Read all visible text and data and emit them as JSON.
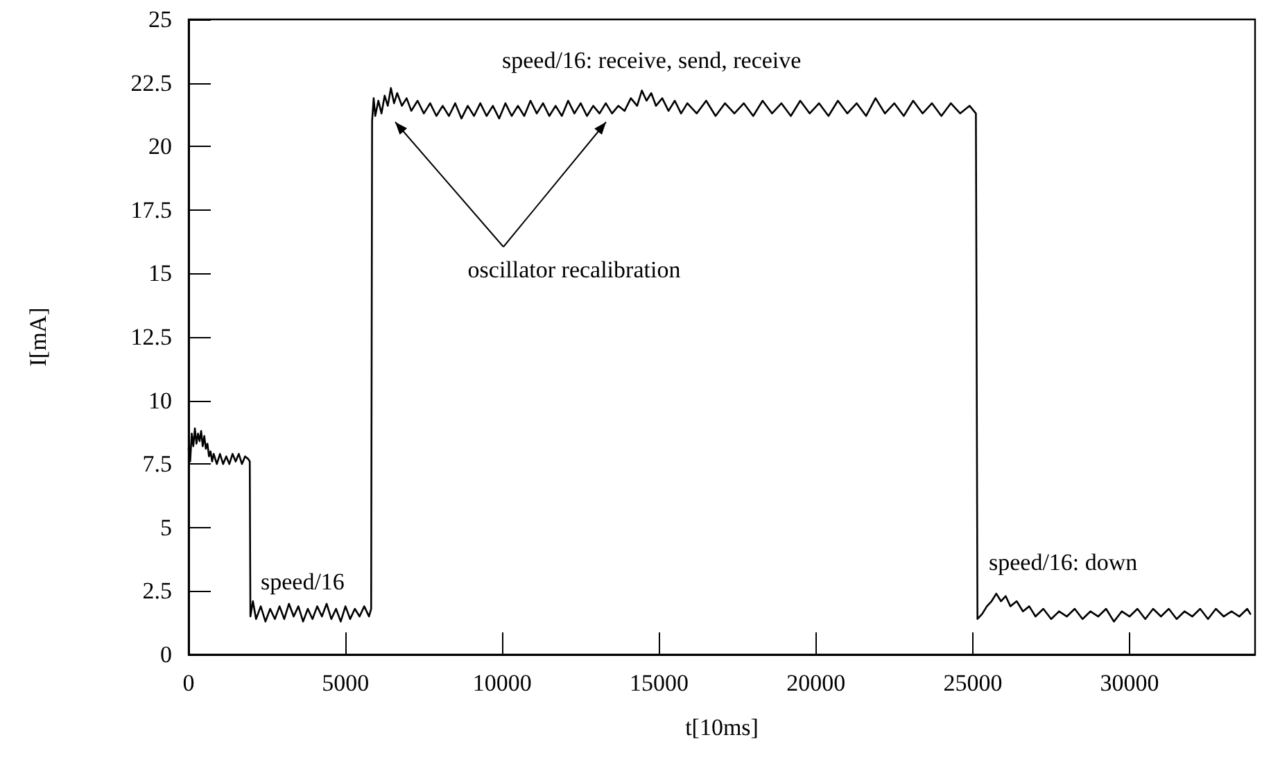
{
  "chart_data": {
    "type": "line",
    "xlabel": "t[10ms]",
    "ylabel": "I[mA]",
    "xlim": [
      0,
      34000
    ],
    "xticks": [
      0,
      5000,
      10000,
      15000,
      20000,
      25000,
      30000
    ],
    "ylim": [
      0,
      25
    ],
    "yticks": [
      0,
      2.5,
      5,
      7.5,
      10,
      12.5,
      15,
      17.5,
      20,
      22.5,
      25
    ],
    "grid": false,
    "marker": "none",
    "line_style": "solid",
    "annotations": [
      "speed/16",
      "speed/16: receive, send, receive",
      "oscillator recalibration",
      "speed/16: down"
    ],
    "series": [
      {
        "color": "#000000",
        "x": [
          0,
          50,
          100,
          150,
          200,
          250,
          300,
          350,
          400,
          450,
          500,
          550,
          600,
          650,
          700,
          750,
          800,
          900,
          1000,
          1100,
          1200,
          1300,
          1400,
          1500,
          1600,
          1700,
          1800,
          1900,
          1950,
          1970,
          2050,
          2150,
          2300,
          2450,
          2600,
          2750,
          2900,
          3050,
          3200,
          3350,
          3500,
          3650,
          3800,
          3950,
          4100,
          4250,
          4400,
          4550,
          4700,
          4850,
          5000,
          5150,
          5300,
          5450,
          5600,
          5750,
          5820,
          5850,
          5900,
          5950,
          6050,
          6150,
          6250,
          6350,
          6450,
          6550,
          6650,
          6800,
          6950,
          7100,
          7300,
          7500,
          7700,
          7900,
          8100,
          8300,
          8500,
          8700,
          8900,
          9100,
          9300,
          9500,
          9700,
          9900,
          10100,
          10300,
          10500,
          10700,
          10900,
          11100,
          11300,
          11500,
          11700,
          11900,
          12100,
          12300,
          12500,
          12700,
          12900,
          13100,
          13300,
          13500,
          13700,
          13900,
          14100,
          14300,
          14450,
          14600,
          14750,
          14900,
          15100,
          15300,
          15500,
          15700,
          15900,
          16200,
          16500,
          16800,
          17100,
          17400,
          17700,
          18000,
          18300,
          18600,
          18900,
          19200,
          19500,
          19800,
          20100,
          20400,
          20700,
          21000,
          21300,
          21600,
          21900,
          22200,
          22500,
          22800,
          23100,
          23400,
          23700,
          24000,
          24300,
          24600,
          24900,
          25100,
          25150,
          25300,
          25450,
          25600,
          25750,
          25900,
          26050,
          26200,
          26400,
          26600,
          26800,
          27000,
          27250,
          27500,
          27750,
          28000,
          28250,
          28500,
          28750,
          29000,
          29250,
          29500,
          29750,
          30000,
          30250,
          30500,
          30750,
          31000,
          31250,
          31500,
          31750,
          32000,
          32250,
          32500,
          32750,
          33000,
          33250,
          33500,
          33750,
          33850
        ],
        "values": [
          8.1,
          7.6,
          8.7,
          8.2,
          8.9,
          8.3,
          8.7,
          8.4,
          8.8,
          8.2,
          8.6,
          8.1,
          8.3,
          7.8,
          8.0,
          7.6,
          7.9,
          7.5,
          7.9,
          7.5,
          7.8,
          7.5,
          7.9,
          7.6,
          7.9,
          7.5,
          7.8,
          7.7,
          7.6,
          1.5,
          2.1,
          1.4,
          1.9,
          1.3,
          1.8,
          1.4,
          1.9,
          1.4,
          2.0,
          1.5,
          1.9,
          1.3,
          1.8,
          1.4,
          1.9,
          1.5,
          2.0,
          1.4,
          1.8,
          1.3,
          1.9,
          1.4,
          1.8,
          1.5,
          1.9,
          1.5,
          1.8,
          21.0,
          21.9,
          21.2,
          21.8,
          21.3,
          22.0,
          21.6,
          22.3,
          21.7,
          22.1,
          21.6,
          21.9,
          21.4,
          21.8,
          21.3,
          21.7,
          21.2,
          21.6,
          21.2,
          21.7,
          21.1,
          21.6,
          21.2,
          21.7,
          21.2,
          21.6,
          21.1,
          21.7,
          21.2,
          21.6,
          21.2,
          21.8,
          21.3,
          21.7,
          21.2,
          21.6,
          21.2,
          21.8,
          21.3,
          21.7,
          21.2,
          21.6,
          21.3,
          21.7,
          21.3,
          21.6,
          21.4,
          21.9,
          21.6,
          22.2,
          21.8,
          22.1,
          21.6,
          21.9,
          21.4,
          21.8,
          21.3,
          21.7,
          21.3,
          21.8,
          21.2,
          21.7,
          21.3,
          21.7,
          21.2,
          21.8,
          21.3,
          21.7,
          21.2,
          21.8,
          21.3,
          21.7,
          21.2,
          21.8,
          21.3,
          21.7,
          21.2,
          21.9,
          21.3,
          21.7,
          21.2,
          21.8,
          21.3,
          21.7,
          21.2,
          21.7,
          21.3,
          21.6,
          21.3,
          1.4,
          1.6,
          1.9,
          2.1,
          2.4,
          2.1,
          2.3,
          1.9,
          2.1,
          1.7,
          1.9,
          1.5,
          1.8,
          1.4,
          1.7,
          1.5,
          1.8,
          1.4,
          1.7,
          1.5,
          1.8,
          1.3,
          1.7,
          1.5,
          1.8,
          1.4,
          1.8,
          1.5,
          1.8,
          1.4,
          1.7,
          1.5,
          1.8,
          1.4,
          1.8,
          1.5,
          1.7,
          1.5,
          1.8,
          1.6
        ]
      }
    ]
  }
}
